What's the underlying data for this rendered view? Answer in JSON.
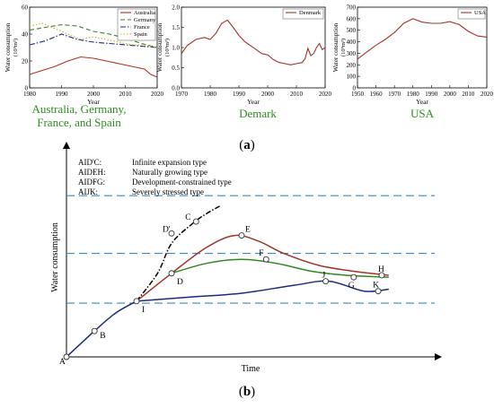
{
  "colors": {
    "australia": "#b03020",
    "germany": "#3a7d2c",
    "france": "#1d2a80",
    "spain": "#c8b020",
    "denmark": "#a0342a",
    "usa": "#a0342a",
    "caption_green": "#2e8b1f",
    "dashed_blue": "#3a86c8"
  },
  "chart_data": [
    {
      "type": "line",
      "id": "multi",
      "ylabel": "Water consumption",
      "yunit": "(10⁹m³)",
      "xlabel": "Year",
      "xlim": [
        1980,
        2020
      ],
      "ylim": [
        0,
        60
      ],
      "xticks": [
        1980,
        1990,
        2000,
        2010,
        2020
      ],
      "yticks": [
        0,
        20,
        40,
        60
      ],
      "legend_position": "top-right",
      "series": [
        {
          "name": "Australia",
          "color": "#b03020",
          "dash": "solid",
          "x": [
            1980,
            1984,
            1988,
            1992,
            1996,
            2000,
            2004,
            2008,
            2012,
            2016,
            2018,
            2020
          ],
          "y": [
            10,
            13,
            16,
            20,
            23,
            22,
            20,
            18,
            16,
            14,
            10,
            8
          ]
        },
        {
          "name": "Germany",
          "color": "#3a7d2c",
          "dash": "dashed",
          "x": [
            1980,
            1985,
            1990,
            1995,
            2000,
            2005,
            2010,
            2015,
            2020
          ],
          "y": [
            43,
            45,
            47,
            46,
            42,
            40,
            37,
            33,
            30
          ]
        },
        {
          "name": "France",
          "color": "#1d2a80",
          "dash": "dashdot",
          "x": [
            1980,
            1985,
            1990,
            1995,
            2000,
            2005,
            2010,
            2015,
            2020
          ],
          "y": [
            32,
            35,
            40,
            36,
            34,
            33,
            32,
            31,
            30
          ]
        },
        {
          "name": "Spain",
          "color": "#c8b020",
          "dash": "dotted",
          "x": [
            1980,
            1984,
            1988,
            1992,
            1996,
            2000,
            2004,
            2008,
            2012,
            2016,
            2020
          ],
          "y": [
            46,
            48,
            44,
            40,
            36,
            38,
            36,
            34,
            32,
            32,
            30
          ]
        }
      ],
      "caption": [
        "Australia, Germany,",
        "France, and Spain"
      ]
    },
    {
      "type": "line",
      "id": "denmark",
      "ylabel": "Water consumption",
      "yunit": "(10⁹m³)",
      "xlabel": "Year",
      "xlim": [
        1970,
        2020
      ],
      "ylim": [
        0,
        2.0
      ],
      "xticks": [
        1970,
        1980,
        1990,
        2000,
        2010,
        2020
      ],
      "yticks": [
        "0.0",
        "0.5",
        "1.0",
        "1.5",
        "2.0"
      ],
      "legend_position": "top-right",
      "series": [
        {
          "name": "Denmark",
          "color": "#a0342a",
          "x": [
            1970,
            1972,
            1975,
            1978,
            1980,
            1982,
            1984,
            1986,
            1988,
            1990,
            1992,
            1994,
            1996,
            1998,
            2000,
            2002,
            2004,
            2006,
            2008,
            2010,
            2012,
            2013,
            2014,
            2015,
            2016,
            2017,
            2018,
            2019,
            2020
          ],
          "y": [
            0.85,
            1.05,
            1.2,
            1.25,
            1.2,
            1.35,
            1.6,
            1.68,
            1.5,
            1.3,
            1.15,
            1.05,
            0.95,
            0.85,
            0.82,
            0.7,
            0.63,
            0.6,
            0.57,
            0.6,
            0.63,
            0.72,
            0.98,
            0.8,
            0.85,
            1.0,
            1.1,
            0.95,
            1.0
          ]
        }
      ],
      "caption": [
        "Demark"
      ]
    },
    {
      "type": "line",
      "id": "usa",
      "ylabel": "Water consumption",
      "yunit": "(10⁹m³)",
      "xlabel": "Year",
      "xlim": [
        1950,
        2020
      ],
      "ylim": [
        0,
        700
      ],
      "xticks": [
        1950,
        1960,
        1970,
        1980,
        1990,
        2000,
        2010,
        2020
      ],
      "yticks": [
        0,
        100,
        200,
        300,
        400,
        500,
        600,
        700
      ],
      "legend_position": "top-right",
      "series": [
        {
          "name": "USA",
          "color": "#a0342a",
          "x": [
            1950,
            1955,
            1960,
            1965,
            1970,
            1975,
            1980,
            1985,
            1990,
            1995,
            2000,
            2005,
            2010,
            2015,
            2020
          ],
          "y": [
            250,
            310,
            370,
            420,
            480,
            560,
            600,
            570,
            560,
            560,
            575,
            550,
            490,
            450,
            440
          ]
        }
      ],
      "caption": [
        "USA"
      ]
    },
    {
      "type": "line",
      "id": "conceptual",
      "xlabel": "Time",
      "ylabel": "Water consumption",
      "ylim": [
        0,
        100
      ],
      "xlim": [
        0,
        100
      ],
      "legend_entries": [
        {
          "code": "AID'C:",
          "desc": "Infinite expansion type"
        },
        {
          "code": "AIDEH:",
          "desc": "Naturally growing type"
        },
        {
          "code": "AIDFG:",
          "desc": "Development-constrained type"
        },
        {
          "code": "AIJK:",
          "desc": "Severely stressed type"
        }
      ],
      "reference_levels": [
        81,
        52,
        27
      ],
      "series": [
        {
          "name": "",
          "role": "base",
          "color": "#1d2a80",
          "dash": "solid",
          "x": [
            0,
            8,
            14,
            20
          ],
          "y": [
            0,
            13,
            22,
            28
          ]
        },
        {
          "name": "",
          "role": "AID'C",
          "color": "#000000",
          "dash": "dashdot",
          "x": [
            20,
            26,
            30,
            36,
            40,
            44
          ],
          "y": [
            28,
            42,
            57,
            67,
            72,
            76
          ]
        },
        {
          "name": "",
          "role": "AIDEH",
          "color": "#a0342a",
          "dash": "solid",
          "x": [
            20,
            30,
            40,
            48,
            55,
            62,
            72,
            82,
            92
          ],
          "y": [
            28,
            42,
            55,
            61,
            58,
            52,
            46,
            43,
            41
          ]
        },
        {
          "name": "",
          "role": "AIDFG",
          "color": "#2e8b1f",
          "dash": "solid",
          "x": [
            30,
            40,
            50,
            60,
            70,
            80,
            92
          ],
          "y": [
            42,
            47,
            49,
            47,
            43,
            41,
            40
          ]
        },
        {
          "name": "",
          "role": "AIJK",
          "color": "#1d2a80",
          "dash": "solid",
          "x": [
            20,
            35,
            50,
            65,
            75,
            85,
            92
          ],
          "y": [
            28,
            30,
            32,
            36,
            38,
            33,
            34
          ]
        }
      ],
      "points": [
        {
          "label": "A",
          "x": 0,
          "y": 0
        },
        {
          "label": "B",
          "x": 8,
          "y": 13
        },
        {
          "label": "I",
          "x": 20,
          "y": 28
        },
        {
          "label": "D",
          "x": 30,
          "y": 42
        },
        {
          "label": "D'",
          "x": 30,
          "y": 62
        },
        {
          "label": "C",
          "x": 37,
          "y": 68
        },
        {
          "label": "E",
          "x": 50,
          "y": 61
        },
        {
          "label": "F",
          "x": 57,
          "y": 49
        },
        {
          "label": "G",
          "x": 82,
          "y": 40
        },
        {
          "label": "H",
          "x": 90,
          "y": 41
        },
        {
          "label": "J",
          "x": 74,
          "y": 38
        },
        {
          "label": "K",
          "x": 89,
          "y": 33
        }
      ]
    }
  ],
  "labels": {
    "panel_a": "(a)",
    "panel_b": "(b)",
    "a_label": "a",
    "b_label": "b"
  }
}
